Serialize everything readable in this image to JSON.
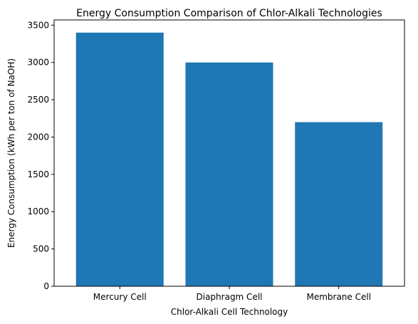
{
  "chart_data": {
    "type": "bar",
    "title": "Energy Consumption Comparison of Chlor-Alkali Technologies",
    "xlabel": "Chlor-Alkali Cell Technology",
    "ylabel": "Energy Consumption (kWh per ton of NaOH)",
    "categories": [
      "Mercury Cell",
      "Diaphragm Cell",
      "Membrane Cell"
    ],
    "values": [
      3400,
      3000,
      2200
    ],
    "ylim": [
      0,
      3570
    ],
    "yticks": [
      0,
      500,
      1000,
      1500,
      2000,
      2500,
      3000,
      3500
    ],
    "bar_color": "#1f77b4",
    "grid": false,
    "legend": "none"
  }
}
